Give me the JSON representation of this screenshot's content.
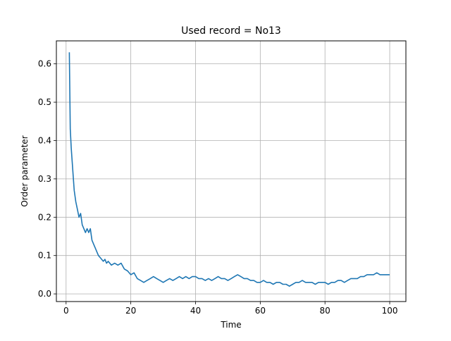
{
  "chart_data": {
    "type": "line",
    "title": "Used record = No13",
    "xlabel": "Time",
    "ylabel": "Order parameter",
    "xlim": [
      -3,
      105
    ],
    "ylim": [
      -0.02,
      0.66
    ],
    "xticks": [
      0,
      20,
      40,
      60,
      80,
      100
    ],
    "xtick_labels": [
      "0",
      "20",
      "40",
      "60",
      "80",
      "100"
    ],
    "yticks": [
      0.0,
      0.1,
      0.2,
      0.3,
      0.4,
      0.5,
      0.6
    ],
    "ytick_labels": [
      "0.0",
      "0.1",
      "0.2",
      "0.3",
      "0.4",
      "0.5",
      "0.6"
    ],
    "grid": true,
    "line_color": "#1f77b4",
    "grid_color": "#b0b0b0",
    "series": [
      {
        "x": [
          1.0,
          1.3,
          1.6,
          2.0,
          2.5,
          3.0,
          3.5,
          4.0,
          4.5,
          5.0,
          5.5,
          6.0,
          6.5,
          7.0,
          7.5,
          8.0,
          8.5,
          9.0,
          9.5,
          10.0,
          10.5,
          11.0,
          11.5,
          12.0,
          12.5,
          13.0,
          14.0,
          15.0,
          16.0,
          17.0,
          18.0,
          19.0,
          20.0,
          21.0,
          22.0,
          23.0,
          24.0,
          25.0,
          26.0,
          27.0,
          28.0,
          29.0,
          30.0,
          31.0,
          32.0,
          33.0,
          34.0,
          35.0,
          36.0,
          37.0,
          38.0,
          39.0,
          40.0,
          41.0,
          42.0,
          43.0,
          44.0,
          45.0,
          46.0,
          47.0,
          48.0,
          49.0,
          50.0,
          51.0,
          52.0,
          53.0,
          54.0,
          55.0,
          56.0,
          57.0,
          58.0,
          59.0,
          60.0,
          61.0,
          62.0,
          63.0,
          64.0,
          65.0,
          66.0,
          67.0,
          68.0,
          69.0,
          70.0,
          71.0,
          72.0,
          73.0,
          74.0,
          75.0,
          76.0,
          77.0,
          78.0,
          79.0,
          80.0,
          81.0,
          82.0,
          83.0,
          84.0,
          85.0,
          86.0,
          87.0,
          88.0,
          89.0,
          90.0,
          91.0,
          92.0,
          93.0,
          94.0,
          95.0,
          96.0,
          97.0,
          98.0,
          99.0,
          100.0
        ],
        "y": [
          0.63,
          0.43,
          0.38,
          0.33,
          0.27,
          0.24,
          0.22,
          0.2,
          0.21,
          0.18,
          0.17,
          0.16,
          0.17,
          0.16,
          0.17,
          0.14,
          0.13,
          0.12,
          0.11,
          0.1,
          0.095,
          0.09,
          0.085,
          0.09,
          0.08,
          0.085,
          0.075,
          0.08,
          0.075,
          0.08,
          0.065,
          0.06,
          0.05,
          0.055,
          0.04,
          0.035,
          0.03,
          0.035,
          0.04,
          0.045,
          0.04,
          0.035,
          0.03,
          0.035,
          0.04,
          0.035,
          0.04,
          0.045,
          0.04,
          0.045,
          0.04,
          0.045,
          0.045,
          0.04,
          0.04,
          0.035,
          0.04,
          0.035,
          0.04,
          0.045,
          0.04,
          0.04,
          0.035,
          0.04,
          0.045,
          0.05,
          0.045,
          0.04,
          0.04,
          0.035,
          0.035,
          0.03,
          0.03,
          0.035,
          0.03,
          0.03,
          0.025,
          0.03,
          0.03,
          0.025,
          0.025,
          0.02,
          0.025,
          0.03,
          0.03,
          0.035,
          0.03,
          0.03,
          0.03,
          0.025,
          0.03,
          0.03,
          0.03,
          0.025,
          0.03,
          0.03,
          0.035,
          0.035,
          0.03,
          0.035,
          0.04,
          0.04,
          0.04,
          0.045,
          0.045,
          0.05,
          0.05,
          0.05,
          0.055,
          0.05,
          0.05,
          0.05,
          0.05
        ]
      }
    ]
  }
}
